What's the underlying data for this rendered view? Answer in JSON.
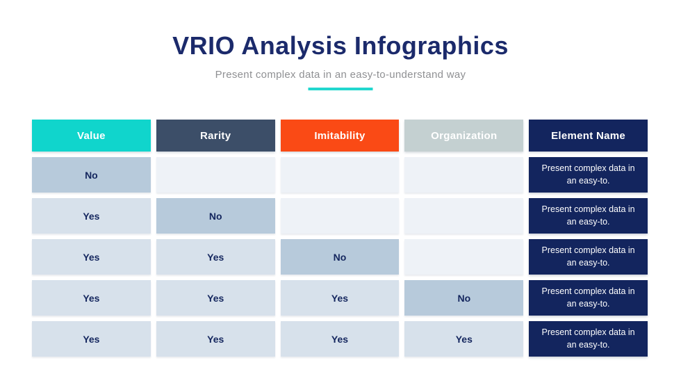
{
  "header": {
    "title": "VRIO Analysis Infographics",
    "subtitle": "Present complex data in an easy-to-understand way"
  },
  "colors": {
    "title_navy": "#1b2a6b",
    "subtitle_gray": "#8f9093",
    "divider_teal": "#22d7ce",
    "header_value": "#10d5cc",
    "header_rarity": "#3c4e68",
    "header_imitability": "#fa4a15",
    "header_organization": "#c4d0d1",
    "header_element": "#13255e",
    "cell_no": "#b7cadb",
    "cell_yes": "#d7e1eb",
    "cell_empty": "#eef2f7",
    "cell_text": "#14265e",
    "element_cell_bg": "#13255e",
    "element_cell_text": "#ffffff"
  },
  "table": {
    "columns": [
      {
        "label": "Value"
      },
      {
        "label": "Rarity"
      },
      {
        "label": "Imitability"
      },
      {
        "label": "Organization"
      },
      {
        "label": "Element Name"
      }
    ],
    "rows": [
      {
        "cells": [
          {
            "text": "No",
            "state": "no"
          },
          {
            "text": "",
            "state": "empty"
          },
          {
            "text": "",
            "state": "empty"
          },
          {
            "text": "",
            "state": "empty"
          }
        ],
        "element_name": "Present complex data in an easy-to."
      },
      {
        "cells": [
          {
            "text": "Yes",
            "state": "yes"
          },
          {
            "text": "No",
            "state": "no"
          },
          {
            "text": "",
            "state": "empty"
          },
          {
            "text": "",
            "state": "empty"
          }
        ],
        "element_name": "Present complex data in an easy-to."
      },
      {
        "cells": [
          {
            "text": "Yes",
            "state": "yes"
          },
          {
            "text": "Yes",
            "state": "yes"
          },
          {
            "text": "No",
            "state": "no"
          },
          {
            "text": "",
            "state": "empty"
          }
        ],
        "element_name": "Present complex data in an easy-to."
      },
      {
        "cells": [
          {
            "text": "Yes",
            "state": "yes"
          },
          {
            "text": "Yes",
            "state": "yes"
          },
          {
            "text": "Yes",
            "state": "yes"
          },
          {
            "text": "No",
            "state": "no"
          }
        ],
        "element_name": "Present complex data in an easy-to."
      },
      {
        "cells": [
          {
            "text": "Yes",
            "state": "yes"
          },
          {
            "text": "Yes",
            "state": "yes"
          },
          {
            "text": "Yes",
            "state": "yes"
          },
          {
            "text": "Yes",
            "state": "yes"
          }
        ],
        "element_name": "Present complex data in an easy-to."
      }
    ]
  }
}
